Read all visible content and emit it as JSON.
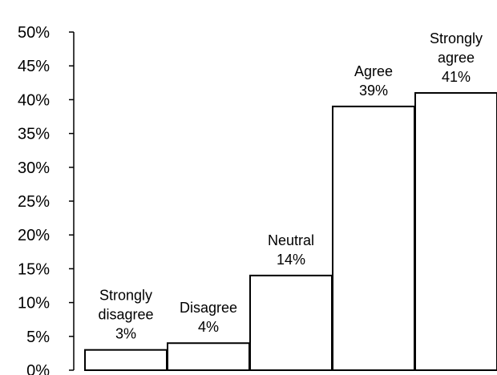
{
  "chart_data": {
    "type": "bar",
    "title": "",
    "xlabel": "",
    "ylabel": "",
    "ylim": [
      0,
      50
    ],
    "y_ticks": [
      "0%",
      "5%",
      "10%",
      "15%",
      "20%",
      "25%",
      "30%",
      "35%",
      "40%",
      "45%",
      "50%"
    ],
    "grid": false,
    "legend": "none",
    "bar_fill": "#ffffff",
    "bar_stroke": "#000000",
    "categories": [
      {
        "label_lines": [
          "Strongly",
          "disagree"
        ],
        "value": 3,
        "value_label": "3%"
      },
      {
        "label_lines": [
          "Disagree"
        ],
        "value": 4,
        "value_label": "4%"
      },
      {
        "label_lines": [
          "Neutral"
        ],
        "value": 14,
        "value_label": "14%"
      },
      {
        "label_lines": [
          "Agree"
        ],
        "value": 39,
        "value_label": "39%"
      },
      {
        "label_lines": [
          "Strongly",
          "agree"
        ],
        "value": 41,
        "value_label": "41%"
      }
    ]
  }
}
